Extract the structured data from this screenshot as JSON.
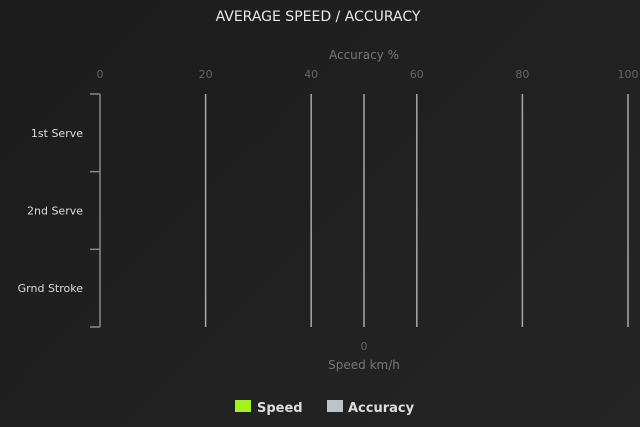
{
  "chart_data": {
    "type": "bar",
    "orientation": "horizontal",
    "title": "AVERAGE SPEED / ACCURACY",
    "categories": [
      "1st Serve",
      "2nd Serve",
      "Grnd Stroke"
    ],
    "top_axis": {
      "label": "Accuracy %",
      "range": [
        0,
        100
      ],
      "ticks": [
        "0",
        "20",
        "40",
        "60",
        "80",
        "100"
      ]
    },
    "bottom_axis": {
      "label": "Speed km/h",
      "ticks": [
        "0"
      ]
    },
    "series": [
      {
        "name": "Speed",
        "color": "#a6f21e",
        "values": [
          null,
          null,
          null
        ]
      },
      {
        "name": "Accuracy",
        "color": "#c0c3c6",
        "values": [
          null,
          null,
          null
        ]
      }
    ],
    "grid": true,
    "legend_position": "bottom"
  }
}
